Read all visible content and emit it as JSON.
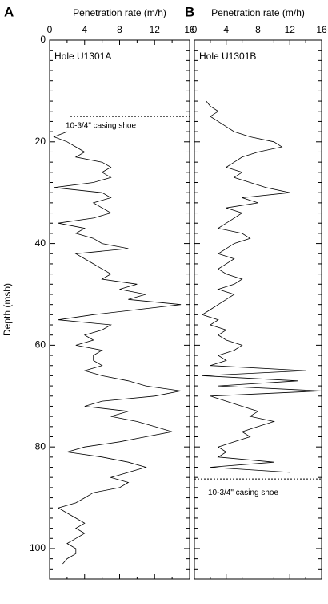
{
  "chart_data": [
    {
      "type": "line",
      "panel": "A",
      "xlabel": "Penetration rate (m/h)",
      "ylabel": "Depth (msb)",
      "hole": "Hole U1301A",
      "annotation": {
        "text": "10-3/4\" casing shoe",
        "depth": 15
      },
      "xlim": [
        0,
        16
      ],
      "xticks": [
        0,
        4,
        8,
        12,
        16
      ],
      "x_minor_ticks": [
        2,
        6,
        10,
        14
      ],
      "ylim": [
        0,
        106
      ],
      "yticks": [
        0,
        20,
        40,
        60,
        80,
        100
      ],
      "y_minor_ticks": [
        2,
        4,
        6,
        8,
        10,
        12,
        14,
        16,
        18,
        22,
        24,
        26,
        28,
        30,
        32,
        34,
        36,
        38,
        42,
        44,
        46,
        48,
        50,
        52,
        54,
        56,
        58,
        62,
        64,
        66,
        68,
        70,
        72,
        74,
        76,
        78,
        82,
        84,
        86,
        88,
        90,
        92,
        94,
        96,
        98,
        102,
        104
      ],
      "show_ytick_labels": true,
      "color": "#000",
      "depth": [
        18,
        19,
        20,
        21,
        22,
        23,
        24,
        25,
        26,
        27,
        28,
        29,
        30,
        31,
        32,
        34,
        35,
        36,
        37,
        38,
        39,
        40,
        41,
        42,
        43,
        44,
        45,
        46,
        47,
        48,
        49,
        50,
        51,
        52,
        53,
        54,
        55,
        56,
        57,
        58,
        59,
        60,
        61,
        62,
        63,
        64,
        65,
        66,
        67,
        68,
        69,
        70,
        71,
        72,
        73,
        74,
        75,
        76,
        77,
        78,
        79,
        80,
        81,
        82,
        83,
        84,
        85,
        86,
        87,
        88,
        89,
        90,
        91,
        92,
        93,
        94,
        95,
        96,
        97,
        98,
        99,
        100,
        101,
        102,
        103
      ],
      "values": [
        2,
        0.5,
        2,
        3,
        4,
        3,
        6,
        7,
        6,
        7,
        5,
        0.5,
        6,
        7,
        5,
        7,
        5,
        1,
        4,
        3,
        5,
        6,
        9,
        3,
        4,
        5,
        6,
        7,
        6,
        10,
        8,
        11,
        9,
        15,
        10,
        5,
        1,
        7,
        6,
        4,
        5,
        3,
        6,
        5,
        5,
        6,
        4,
        6,
        9,
        11,
        15,
        12,
        6,
        4,
        9,
        7,
        10,
        12,
        14,
        11,
        8,
        4,
        2,
        6,
        9,
        11,
        9,
        7,
        9,
        8,
        5,
        4,
        3,
        1,
        2,
        3,
        4,
        3,
        4,
        3,
        2,
        3,
        3,
        2,
        1.5
      ]
    },
    {
      "type": "line",
      "panel": "B",
      "xlabel": "Penetration rate (m/h)",
      "hole": "Hole U1301B",
      "annotation": {
        "text": "10-3/4\" casing shoe",
        "depth": 86.3
      },
      "xlim": [
        0,
        16
      ],
      "xticks": [
        0,
        4,
        8,
        12,
        16
      ],
      "x_minor_ticks": [
        2,
        6,
        10,
        14
      ],
      "ylim": [
        0,
        106
      ],
      "yticks": [
        0,
        20,
        40,
        60,
        80,
        100
      ],
      "y_minor_ticks": [
        2,
        4,
        6,
        8,
        10,
        12,
        14,
        16,
        18,
        22,
        24,
        26,
        28,
        30,
        32,
        34,
        36,
        38,
        42,
        44,
        46,
        48,
        50,
        52,
        54,
        56,
        58,
        62,
        64,
        66,
        68,
        70,
        72,
        74,
        76,
        78,
        82,
        84,
        86,
        88,
        90,
        92,
        94,
        96,
        98,
        102,
        104
      ],
      "show_ytick_labels": false,
      "color": "#000",
      "depth": [
        12,
        13,
        14,
        15,
        16,
        17,
        18,
        19,
        20,
        21,
        22,
        23,
        24,
        25,
        26,
        27,
        28,
        29,
        30,
        31,
        32,
        33,
        34,
        35,
        36,
        37,
        38,
        39,
        40,
        41,
        42,
        43,
        44,
        45,
        46,
        47,
        48,
        49,
        50,
        51,
        52,
        53,
        54,
        55,
        56,
        57,
        58,
        59,
        60,
        61,
        62,
        63,
        64,
        65,
        66,
        67,
        68,
        69,
        70,
        71,
        72,
        73,
        74,
        75,
        76,
        77,
        78,
        79,
        80,
        81,
        82,
        83,
        84,
        85
      ],
      "values": [
        1.5,
        2,
        3,
        2,
        3,
        4,
        5,
        7,
        10,
        11,
        8,
        6,
        5,
        4,
        6,
        5,
        7,
        9,
        12,
        6,
        8,
        4,
        6,
        5,
        4,
        3,
        6,
        7,
        5,
        4,
        3,
        5,
        4,
        3,
        4,
        6,
        5,
        3,
        5,
        4,
        3,
        2,
        1,
        3,
        2,
        4,
        3,
        4,
        6,
        5,
        3,
        4,
        2,
        14,
        1,
        13,
        3,
        16,
        2,
        4,
        6,
        8,
        7,
        10,
        8,
        6,
        7,
        5,
        3,
        4,
        3,
        10,
        2,
        12
      ]
    }
  ]
}
